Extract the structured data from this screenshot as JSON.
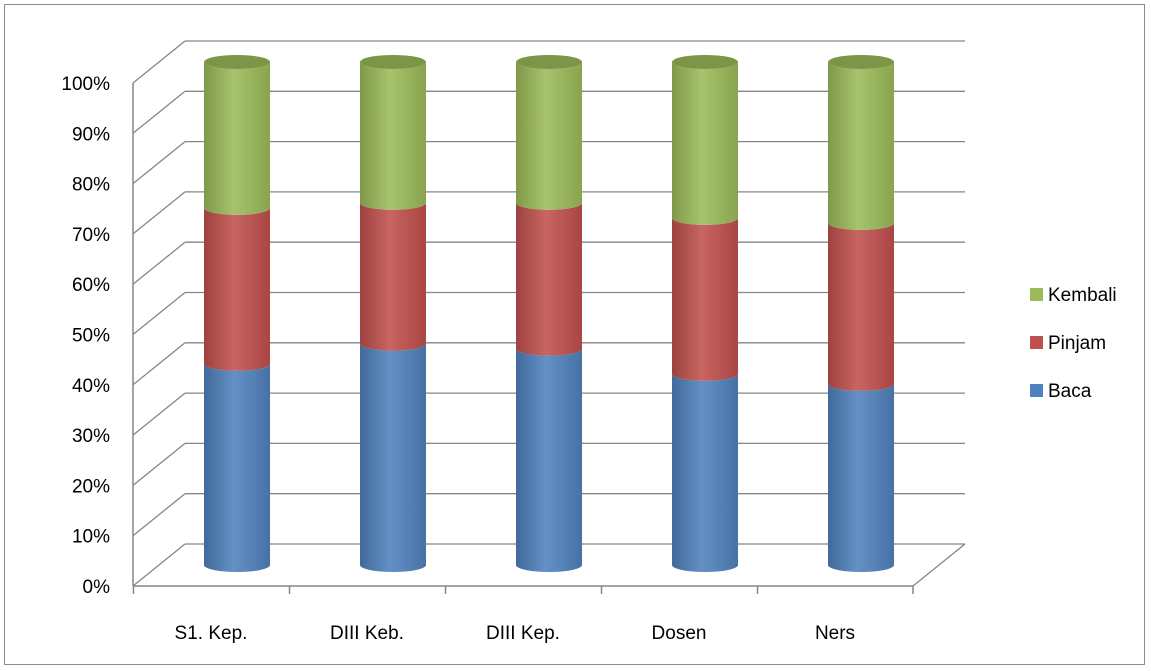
{
  "chart_data": {
    "type": "bar",
    "stacked": true,
    "normalized": true,
    "style": "3d-cylinder",
    "categories": [
      "S1. Kep.",
      "DIII Keb.",
      "DIII Kep.",
      "Dosen",
      "Ners"
    ],
    "series": [
      {
        "name": "Baca",
        "color": "#4F81BD",
        "values": [
          40,
          44,
          43,
          38,
          36
        ]
      },
      {
        "name": "Pinjam",
        "color": "#C0504D",
        "values": [
          31,
          28,
          29,
          31,
          32
        ]
      },
      {
        "name": "Kembali",
        "color": "#9BBB59",
        "values": [
          29,
          28,
          28,
          31,
          32
        ]
      }
    ],
    "y_ticks": [
      "0%",
      "10%",
      "20%",
      "30%",
      "40%",
      "50%",
      "60%",
      "70%",
      "80%",
      "90%",
      "100%"
    ],
    "ylim": [
      0,
      100
    ],
    "grid": true,
    "legend_position": "right",
    "legend_order": [
      "Kembali",
      "Pinjam",
      "Baca"
    ],
    "title": "",
    "xlabel": "",
    "ylabel": ""
  }
}
